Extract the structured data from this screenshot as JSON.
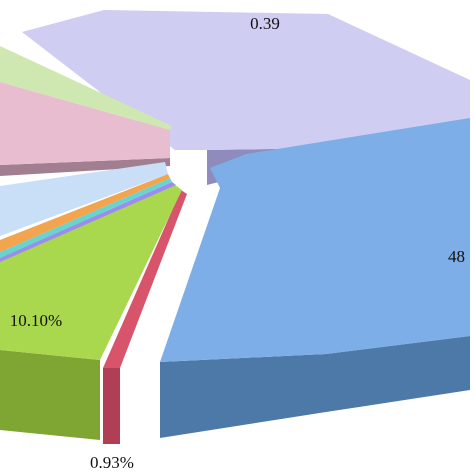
{
  "chart_data": {
    "type": "pie",
    "style": "3d-exploded",
    "slices": [
      {
        "label": "0.39",
        "value": 0.39,
        "color": "#cfcdf1",
        "side": "#8f8bbd"
      },
      {
        "label": "48",
        "value": 48,
        "color": "#7eaee8",
        "side": "#4d79a8"
      },
      {
        "label": "0.93%",
        "value": 0.93,
        "color": "#d7546b",
        "side": "#b03e55"
      },
      {
        "label": "10.10%",
        "value": 10.1,
        "color": "#a9d84e",
        "side": "#7fa532"
      },
      {
        "label": "",
        "value": null,
        "color": "#9d8cf0",
        "side": "#7a6bcc"
      },
      {
        "label": "",
        "value": null,
        "color": "#69d3cf",
        "side": "#4fa9a6"
      },
      {
        "label": "",
        "value": null,
        "color": "#f3a44e",
        "side": "#c47f34"
      },
      {
        "label": "",
        "value": null,
        "color": "#c9def7",
        "side": "#8aa6c7"
      },
      {
        "label": "",
        "value": null,
        "color": "#e8bdd0",
        "side": "#a17f90"
      },
      {
        "label": "",
        "value": null,
        "color": "#cfe8b2",
        "side": "#91a87f"
      }
    ]
  }
}
